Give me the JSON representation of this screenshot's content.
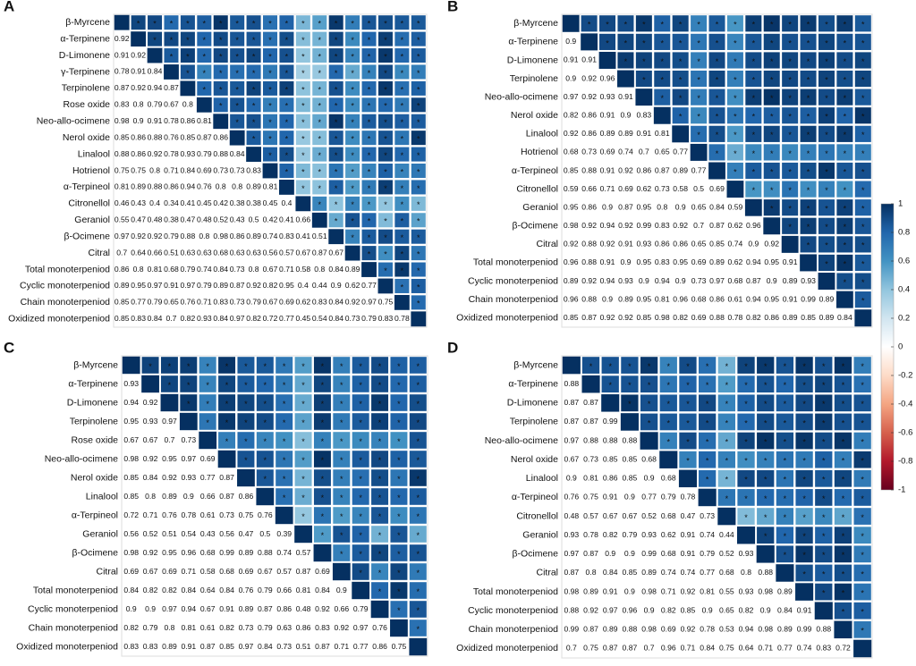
{
  "chart_data": [
    {
      "type": "heatmap",
      "panel_label": "A",
      "variables": [
        "β-Myrcene",
        "α-Terpinene",
        "D-Limonene",
        "γ-Terpinene",
        "Terpinolene",
        "Rose oxide",
        "Neo-allo-ocimene",
        "Nerol oxide",
        "Linalool",
        "Hotrienol",
        "α-Terpineol",
        "Citronellol",
        "Geraniol",
        "β-Ocimene",
        "Citral",
        "Total monoterpeniod",
        "Cyclic monoterpeniod",
        "Chain monoterpeniod",
        "Oxidized monoterpeniod"
      ],
      "values": [
        [
          0.92
        ],
        [
          0.91,
          0.92
        ],
        [
          0.78,
          0.91,
          0.84
        ],
        [
          0.87,
          0.92,
          0.94,
          0.87
        ],
        [
          0.83,
          0.8,
          0.79,
          0.67,
          0.8
        ],
        [
          0.98,
          0.9,
          0.91,
          0.78,
          0.86,
          0.81
        ],
        [
          0.85,
          0.86,
          0.88,
          0.76,
          0.85,
          0.87,
          0.86
        ],
        [
          0.88,
          0.86,
          0.92,
          0.78,
          0.93,
          0.79,
          0.88,
          0.84
        ],
        [
          0.75,
          0.75,
          0.8,
          0.71,
          0.84,
          0.69,
          0.73,
          0.73,
          0.83
        ],
        [
          0.81,
          0.89,
          0.88,
          0.86,
          0.94,
          0.76,
          0.8,
          0.8,
          0.89,
          0.81
        ],
        [
          0.46,
          0.43,
          0.4,
          0.34,
          0.41,
          0.45,
          0.42,
          0.38,
          0.38,
          0.45,
          0.4
        ],
        [
          0.55,
          0.47,
          0.48,
          0.38,
          0.47,
          0.48,
          0.52,
          0.43,
          0.5,
          0.42,
          0.41,
          0.66
        ],
        [
          0.97,
          0.92,
          0.92,
          0.79,
          0.88,
          0.8,
          0.98,
          0.86,
          0.89,
          0.74,
          0.83,
          0.41,
          0.51
        ],
        [
          0.7,
          0.64,
          0.66,
          0.51,
          0.63,
          0.63,
          0.68,
          0.63,
          0.63,
          0.56,
          0.57,
          0.67,
          0.87,
          0.67
        ],
        [
          0.86,
          0.8,
          0.81,
          0.68,
          0.79,
          0.74,
          0.84,
          0.73,
          0.8,
          0.67,
          0.71,
          0.58,
          0.8,
          0.84,
          0.89
        ],
        [
          0.89,
          0.95,
          0.97,
          0.91,
          0.97,
          0.79,
          0.89,
          0.87,
          0.92,
          0.82,
          0.95,
          0.4,
          0.44,
          0.9,
          0.62,
          0.77
        ],
        [
          0.85,
          0.77,
          0.79,
          0.65,
          0.76,
          0.71,
          0.83,
          0.73,
          0.79,
          0.67,
          0.69,
          0.62,
          0.83,
          0.84,
          0.92,
          0.97,
          0.75
        ],
        [
          0.85,
          0.83,
          0.84,
          0.7,
          0.82,
          0.93,
          0.84,
          0.97,
          0.82,
          0.72,
          0.77,
          0.45,
          0.54,
          0.84,
          0.73,
          0.79,
          0.83,
          0.78
        ]
      ]
    },
    {
      "type": "heatmap",
      "panel_label": "B",
      "variables": [
        "β-Myrcene",
        "α-Terpinene",
        "D-Limonene",
        "Terpinolene",
        "Neo-allo-ocimene",
        "Nerol oxide",
        "Linalool",
        "Hotrienol",
        "α-Terpineol",
        "Citronellol",
        "Geraniol",
        "β-Ocimene",
        "Citral",
        "Total monoterpeniod",
        "Cyclic monoterpeniod",
        "Chain monoterpeniod",
        "Oxidized monoterpeniod"
      ],
      "values": [
        [
          0.9
        ],
        [
          0.91,
          0.91
        ],
        [
          0.9,
          0.92,
          0.96
        ],
        [
          0.97,
          0.92,
          0.93,
          0.91
        ],
        [
          0.82,
          0.86,
          0.91,
          0.9,
          0.83
        ],
        [
          0.92,
          0.86,
          0.89,
          0.89,
          0.91,
          0.81
        ],
        [
          0.68,
          0.73,
          0.69,
          0.74,
          0.7,
          0.65,
          0.77
        ],
        [
          0.85,
          0.88,
          0.91,
          0.92,
          0.86,
          0.87,
          0.89,
          0.77
        ],
        [
          0.59,
          0.66,
          0.71,
          0.69,
          0.62,
          0.73,
          0.58,
          0.5,
          0.69
        ],
        [
          0.95,
          0.86,
          0.9,
          0.87,
          0.95,
          0.8,
          0.9,
          0.65,
          0.84,
          0.59
        ],
        [
          0.98,
          0.92,
          0.94,
          0.92,
          0.99,
          0.83,
          0.92,
          0.7,
          0.87,
          0.62,
          0.96
        ],
        [
          0.92,
          0.88,
          0.92,
          0.91,
          0.93,
          0.86,
          0.86,
          0.65,
          0.85,
          0.74,
          0.9,
          0.92
        ],
        [
          0.96,
          0.88,
          0.91,
          0.9,
          0.95,
          0.83,
          0.95,
          0.69,
          0.89,
          0.62,
          0.94,
          0.95,
          0.91
        ],
        [
          0.89,
          0.92,
          0.94,
          0.93,
          0.9,
          0.94,
          0.9,
          0.73,
          0.97,
          0.68,
          0.87,
          0.9,
          0.89,
          0.93
        ],
        [
          0.96,
          0.88,
          0.9,
          0.89,
          0.95,
          0.81,
          0.96,
          0.68,
          0.86,
          0.61,
          0.94,
          0.95,
          0.91,
          0.99,
          0.89
        ],
        [
          0.85,
          0.87,
          0.92,
          0.92,
          0.85,
          0.98,
          0.82,
          0.69,
          0.88,
          0.78,
          0.82,
          0.86,
          0.89,
          0.85,
          0.89,
          0.84
        ]
      ]
    },
    {
      "type": "heatmap",
      "panel_label": "C",
      "variables": [
        "β-Myrcene",
        "α-Terpinene",
        "D-Limonene",
        "Terpinolene",
        "Rose oxide",
        "Neo-allo-ocimene",
        "Nerol oxide",
        "Linalool",
        "α-Terpineol",
        "Geraniol",
        "β-Ocimene",
        "Citral",
        "Total monoterpeniod",
        "Cyclic monoterpeniod",
        "Chain monoterpeniod",
        "Oxidized monoterpeniod"
      ],
      "values": [
        [
          0.93
        ],
        [
          0.94,
          0.92
        ],
        [
          0.95,
          0.93,
          0.97
        ],
        [
          0.67,
          0.67,
          0.7,
          0.73
        ],
        [
          0.98,
          0.92,
          0.95,
          0.97,
          0.69
        ],
        [
          0.85,
          0.84,
          0.92,
          0.93,
          0.77,
          0.87
        ],
        [
          0.85,
          0.8,
          0.89,
          0.9,
          0.66,
          0.87,
          0.86
        ],
        [
          0.72,
          0.71,
          0.76,
          0.78,
          0.61,
          0.73,
          0.75,
          0.76
        ],
        [
          0.56,
          0.52,
          0.51,
          0.54,
          0.43,
          0.56,
          0.47,
          0.5,
          0.39
        ],
        [
          0.98,
          0.92,
          0.95,
          0.96,
          0.68,
          0.99,
          0.89,
          0.88,
          0.74,
          0.57
        ],
        [
          0.69,
          0.67,
          0.69,
          0.71,
          0.58,
          0.68,
          0.69,
          0.67,
          0.57,
          0.87,
          0.69
        ],
        [
          0.84,
          0.82,
          0.82,
          0.84,
          0.64,
          0.84,
          0.76,
          0.79,
          0.66,
          0.81,
          0.84,
          0.9
        ],
        [
          0.9,
          0.9,
          0.97,
          0.94,
          0.67,
          0.91,
          0.89,
          0.87,
          0.86,
          0.48,
          0.92,
          0.66,
          0.79
        ],
        [
          0.82,
          0.79,
          0.8,
          0.81,
          0.61,
          0.82,
          0.73,
          0.79,
          0.63,
          0.86,
          0.83,
          0.92,
          0.97,
          0.76
        ],
        [
          0.83,
          0.83,
          0.89,
          0.91,
          0.87,
          0.85,
          0.97,
          0.84,
          0.73,
          0.51,
          0.87,
          0.71,
          0.77,
          0.86,
          0.75
        ]
      ]
    },
    {
      "type": "heatmap",
      "panel_label": "D",
      "variables": [
        "β-Myrcene",
        "α-Terpinene",
        "D-Limonene",
        "Terpinolene",
        "Neo-allo-ocimene",
        "Nerol oxide",
        "Linalool",
        "α-Terpineol",
        "Citronellol",
        "Geraniol",
        "β-Ocimene",
        "Citral",
        "Total monoterpeniod",
        "Cyclic monoterpeniod",
        "Chain monoterpeniod",
        "Oxidized monoterpeniod"
      ],
      "values": [
        [
          0.88
        ],
        [
          0.87,
          0.87
        ],
        [
          0.87,
          0.87,
          0.99
        ],
        [
          0.97,
          0.88,
          0.88,
          0.88
        ],
        [
          0.67,
          0.73,
          0.85,
          0.85,
          0.68
        ],
        [
          0.9,
          0.81,
          0.86,
          0.85,
          0.9,
          0.68
        ],
        [
          0.76,
          0.75,
          0.91,
          0.9,
          0.77,
          0.79,
          0.78
        ],
        [
          0.48,
          0.57,
          0.67,
          0.67,
          0.52,
          0.68,
          0.47,
          0.73
        ],
        [
          0.93,
          0.78,
          0.82,
          0.79,
          0.93,
          0.62,
          0.91,
          0.74,
          0.44
        ],
        [
          0.97,
          0.87,
          0.9,
          0.9,
          0.99,
          0.68,
          0.91,
          0.79,
          0.52,
          0.93
        ],
        [
          0.87,
          0.8,
          0.84,
          0.85,
          0.89,
          0.74,
          0.74,
          0.77,
          0.68,
          0.8,
          0.88
        ],
        [
          0.98,
          0.89,
          0.91,
          0.9,
          0.98,
          0.71,
          0.92,
          0.81,
          0.55,
          0.93,
          0.98,
          0.89
        ],
        [
          0.88,
          0.92,
          0.97,
          0.96,
          0.9,
          0.82,
          0.85,
          0.9,
          0.65,
          0.82,
          0.9,
          0.84,
          0.91
        ],
        [
          0.99,
          0.87,
          0.89,
          0.88,
          0.98,
          0.69,
          0.92,
          0.78,
          0.53,
          0.94,
          0.98,
          0.89,
          0.99,
          0.88
        ],
        [
          0.7,
          0.75,
          0.87,
          0.87,
          0.7,
          0.96,
          0.71,
          0.84,
          0.75,
          0.64,
          0.71,
          0.77,
          0.74,
          0.83,
          0.72
        ]
      ]
    }
  ],
  "colorbar": {
    "lim": [
      -1,
      1
    ],
    "ticks": [
      1,
      0.8,
      0.6,
      0.4,
      0.2,
      0,
      -0.2,
      -0.4,
      -0.6,
      -0.8,
      -1
    ],
    "colors": [
      "#67001f",
      "#b2182b",
      "#d6604d",
      "#f4a582",
      "#fddbc7",
      "#ffffff",
      "#d1e5f0",
      "#92c5de",
      "#4393c3",
      "#2166ac",
      "#053061"
    ]
  },
  "significance_marker": "*"
}
